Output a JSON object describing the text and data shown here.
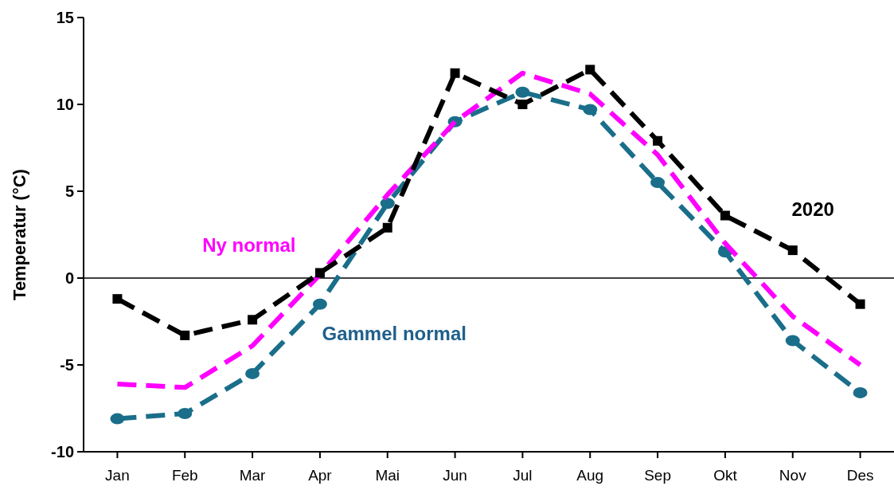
{
  "chart_data": {
    "type": "line",
    "ylabel": "Temperatur (°C)",
    "categories": [
      "Jan",
      "Feb",
      "Mar",
      "Apr",
      "Mai",
      "Jun",
      "Jul",
      "Aug",
      "Sep",
      "Okt",
      "Nov",
      "Des"
    ],
    "series": [
      {
        "name": "Gammel normal",
        "color": "#1a6e8a",
        "marker": "circle",
        "line_style": "dashed",
        "values": [
          -8.1,
          -7.8,
          -5.5,
          -1.5,
          4.3,
          9.0,
          10.7,
          9.7,
          5.5,
          1.5,
          -3.6,
          -6.6
        ]
      },
      {
        "name": "Ny normal",
        "color": "#ff00ff",
        "marker": "none",
        "line_style": "dashed",
        "values": [
          -6.1,
          -6.3,
          -3.9,
          0.2,
          4.8,
          9.0,
          11.8,
          10.6,
          7.1,
          2.0,
          -2.2,
          -5.0
        ]
      },
      {
        "name": "2020",
        "color": "#000000",
        "marker": "square",
        "line_style": "dashed",
        "values": [
          -1.2,
          -3.3,
          -2.4,
          0.3,
          2.9,
          11.8,
          10.0,
          12.0,
          7.9,
          3.6,
          1.6,
          -1.5
        ]
      }
    ],
    "ylim": [
      -10,
      15
    ],
    "yticks": [
      -10,
      -5,
      0,
      5,
      10,
      15
    ],
    "ref_lines": [
      {
        "axis": "y",
        "value": 0,
        "color": "#000000"
      }
    ],
    "grid": false
  }
}
